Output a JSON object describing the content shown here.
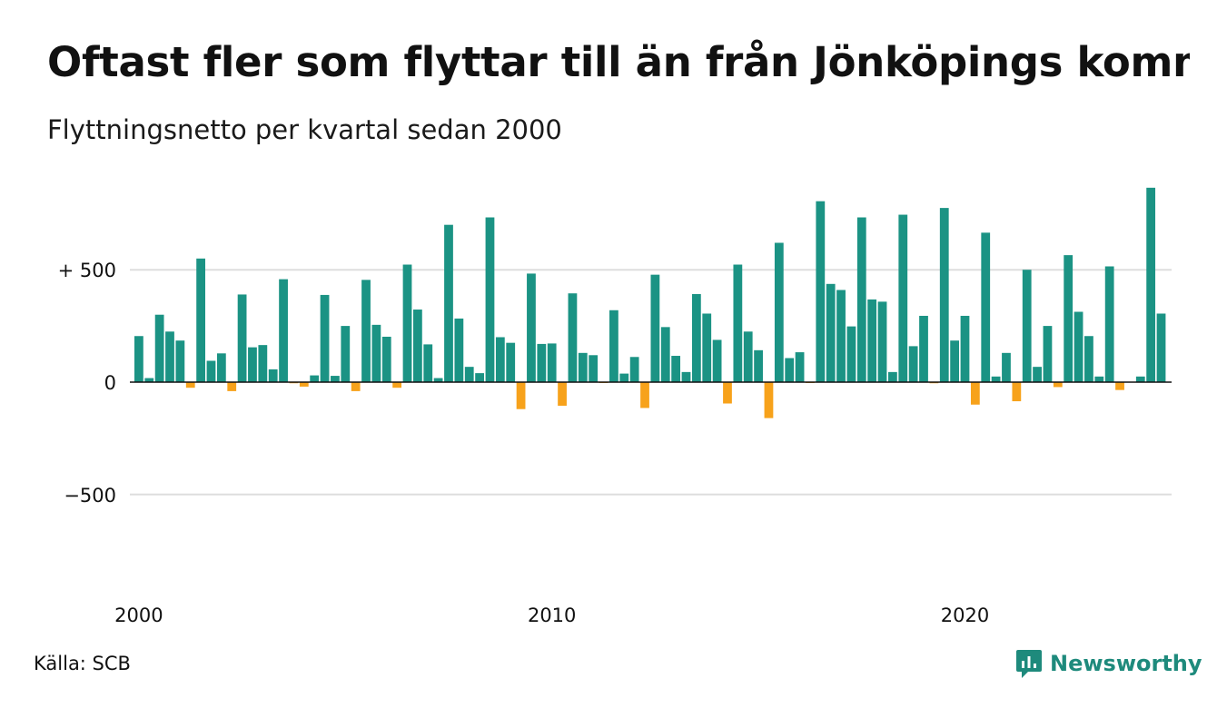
{
  "title": "Oftast fler som flyttar till än från Jönköpings kommun",
  "subtitle": "Flyttningsnetto per kvartal sedan 2000",
  "source": "Källa: SCB",
  "brand": {
    "name": "Newsworthy",
    "icon": "newsworthy-logo-icon"
  },
  "colors": {
    "positive": "#1b9384",
    "negative": "#f7a21b",
    "grid": "#dddddd",
    "zero_line": "#111111"
  },
  "chart_data": {
    "type": "bar",
    "title": "Oftast fler som flyttar till än från Jönköpings kommun",
    "subtitle": "Flyttningsnetto per kvartal sedan 2000",
    "xlabel": "",
    "ylabel": "",
    "ylim": [
      -800,
      900
    ],
    "grid": true,
    "y_ticks": [
      {
        "value": 500,
        "label": "+ 500"
      },
      {
        "value": 0,
        "label": "0"
      },
      {
        "value": -500,
        "label": "−500"
      }
    ],
    "x_ticks": [
      {
        "label": "2000",
        "index": 0
      },
      {
        "label": "2010",
        "index": 40
      },
      {
        "label": "2020",
        "index": 80
      }
    ],
    "series": [
      {
        "values": [
          205,
          18,
          300,
          225,
          185,
          -25,
          550,
          95,
          128,
          -40,
          390,
          155,
          165,
          57,
          458,
          -5,
          -20,
          30,
          388,
          28,
          250,
          -40,
          455,
          255,
          202,
          -25,
          523,
          323,
          168,
          18,
          700,
          283,
          68,
          40,
          733,
          200,
          175,
          -120,
          483,
          170,
          172,
          -105,
          395,
          130,
          120,
          -2,
          320,
          38,
          112,
          -115,
          478,
          245,
          117,
          45,
          392,
          305,
          188,
          -95,
          523,
          225,
          142,
          -160,
          620,
          107,
          133,
          -2,
          805,
          437,
          410,
          248,
          733,
          368,
          358,
          45,
          745,
          160,
          295,
          -5,
          775,
          185,
          295,
          -100,
          665,
          25,
          130,
          -85,
          500,
          68,
          250,
          -22,
          565,
          313,
          205,
          25,
          515,
          -35,
          0,
          25,
          865,
          305
        ]
      }
    ]
  }
}
